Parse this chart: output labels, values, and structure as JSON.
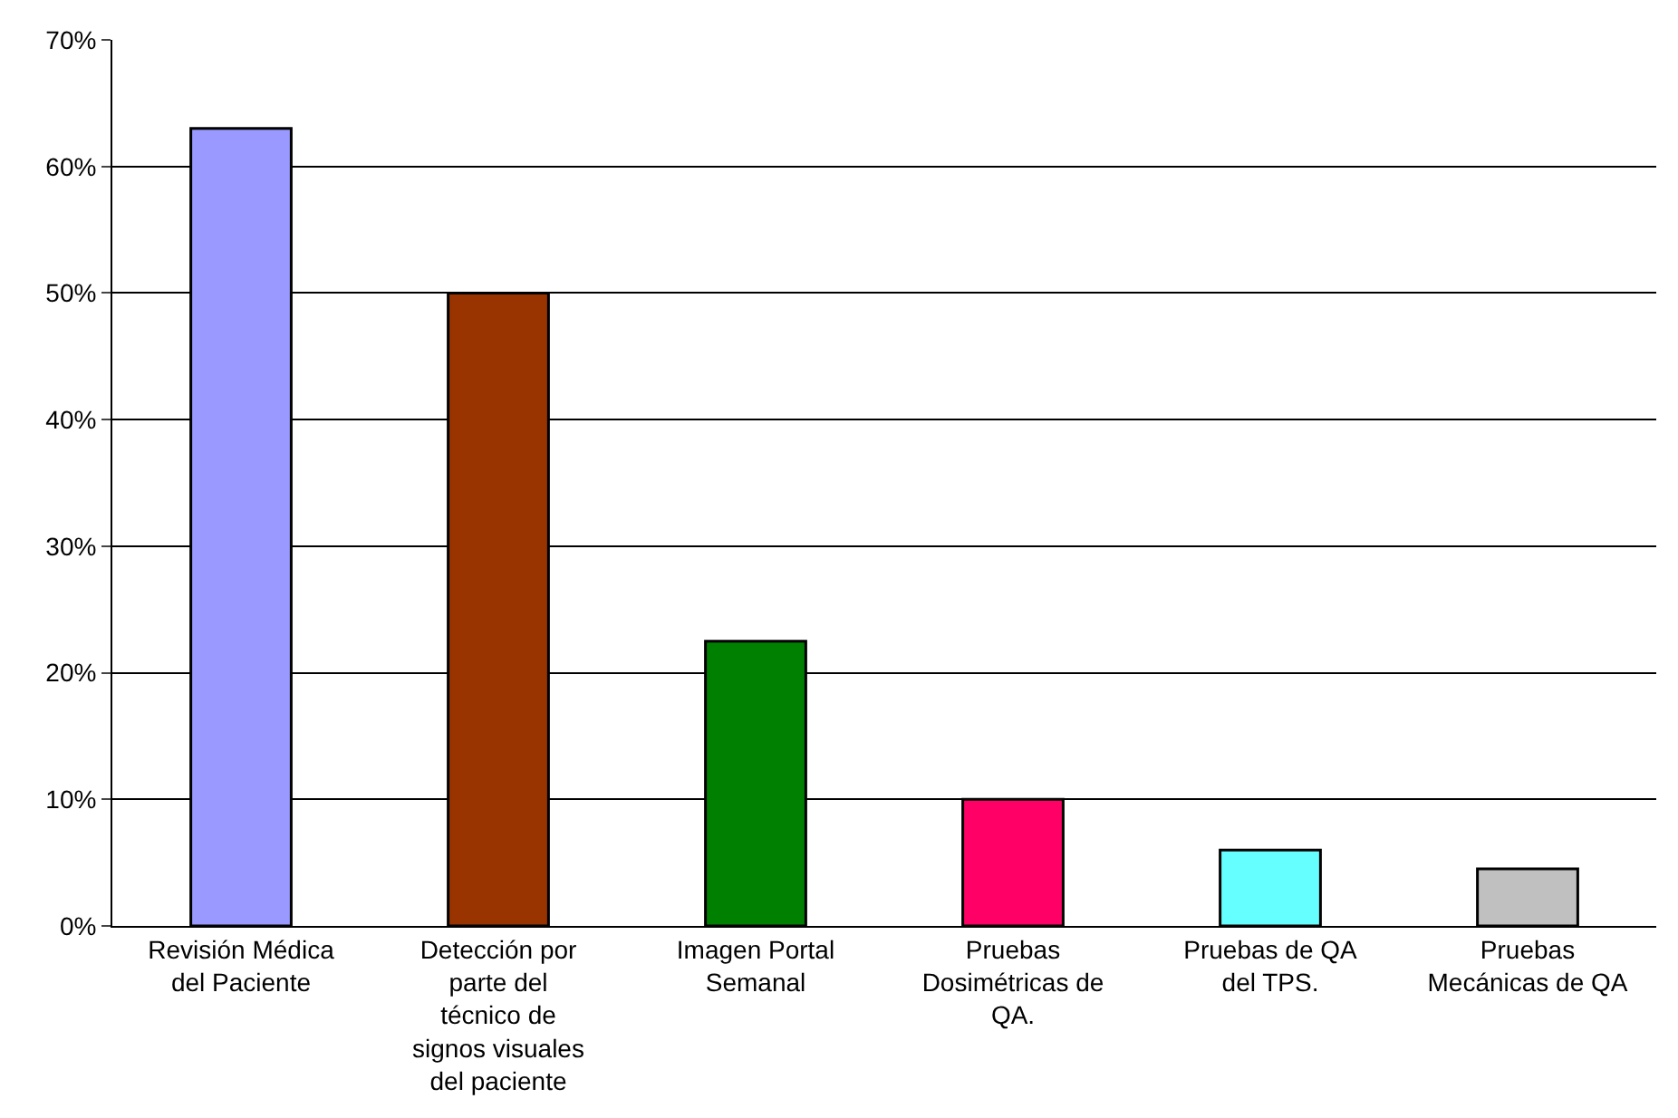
{
  "chart_data": {
    "type": "bar",
    "categories": [
      "Revisión Médica del Paciente",
      "Detección por parte del técnico de signos visuales del paciente",
      "Imagen Portal Semanal",
      "Pruebas Dosimétricas de QA.",
      "Pruebas de QA del TPS.",
      "Pruebas Mecánicas de QA"
    ],
    "values": [
      63,
      50,
      22.5,
      10,
      6,
      4.5
    ],
    "colors": [
      "#9999ff",
      "#993300",
      "#008000",
      "#ff0066",
      "#66ffff",
      "#c0c0c0"
    ],
    "ylim": [
      0,
      70
    ],
    "yticks": [
      {
        "value": 0,
        "label": "0%"
      },
      {
        "value": 10,
        "label": "10%"
      },
      {
        "value": 20,
        "label": "20%"
      },
      {
        "value": 30,
        "label": "30%"
      },
      {
        "value": 40,
        "label": "40%"
      },
      {
        "value": 50,
        "label": "50%"
      },
      {
        "value": 60,
        "label": "60%"
      },
      {
        "value": 70,
        "label": "70%"
      }
    ],
    "grid": "y"
  }
}
